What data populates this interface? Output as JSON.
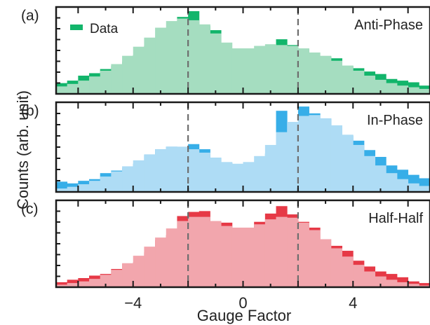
{
  "figure": {
    "xlabel": "Gauge Factor",
    "ylabel": "Counts (arb. unit)",
    "xticks": [
      -4,
      0,
      4
    ],
    "vlines": [
      -2,
      2
    ]
  },
  "legend": {
    "label": "Data"
  },
  "chart_data": [
    {
      "type": "bar",
      "panel_label": "(a)",
      "title": "Anti-Phase",
      "xlabel": "Gauge Factor",
      "ylabel": "Counts (arb. unit)",
      "xlim": [
        -6.8,
        6.8
      ],
      "ylim": [
        0,
        1.05
      ],
      "bin_width": 0.4,
      "bin_centers": [
        -6.6,
        -6.2,
        -5.8,
        -5.4,
        -5.0,
        -4.6,
        -4.2,
        -3.8,
        -3.4,
        -3.0,
        -2.6,
        -2.2,
        -1.8,
        -1.4,
        -1.0,
        -0.6,
        -0.2,
        0.2,
        0.6,
        1.0,
        1.4,
        1.8,
        2.2,
        2.6,
        3.0,
        3.4,
        3.8,
        4.2,
        4.6,
        5.0,
        5.4,
        5.8,
        6.2,
        6.6
      ],
      "series": [
        {
          "name": "Data",
          "kind": "histogram",
          "color": "#12b56b",
          "values": [
            0.13,
            0.16,
            0.22,
            0.25,
            0.3,
            0.34,
            0.39,
            0.47,
            0.58,
            0.6,
            0.69,
            0.93,
            1.0,
            0.82,
            0.77,
            0.52,
            0.18,
            0.52,
            0.5,
            0.56,
            0.66,
            0.59,
            0.54,
            0.45,
            0.45,
            0.43,
            0.34,
            0.31,
            0.27,
            0.24,
            0.18,
            0.16,
            0.14,
            0.1
          ]
        },
        {
          "kind": "fit",
          "color": "#a5ddc0",
          "values": [
            0.09,
            0.12,
            0.16,
            0.21,
            0.28,
            0.36,
            0.46,
            0.57,
            0.68,
            0.8,
            0.88,
            0.91,
            0.89,
            0.84,
            0.73,
            0.62,
            0.55,
            0.55,
            0.58,
            0.6,
            0.59,
            0.58,
            0.55,
            0.5,
            0.46,
            0.4,
            0.34,
            0.28,
            0.22,
            0.17,
            0.13,
            0.1,
            0.08,
            0.06
          ]
        }
      ]
    },
    {
      "type": "bar",
      "panel_label": "(b)",
      "title": "In-Phase",
      "xlim": [
        -6.8,
        6.8
      ],
      "ylim": [
        0,
        1.05
      ],
      "bin_width": 0.4,
      "bin_centers": [
        -6.6,
        -6.2,
        -5.8,
        -5.4,
        -5.0,
        -4.6,
        -4.2,
        -3.8,
        -3.4,
        -3.0,
        -2.6,
        -2.2,
        -1.8,
        -1.4,
        -1.0,
        -0.6,
        -0.2,
        0.2,
        0.6,
        1.0,
        1.4,
        1.8,
        2.2,
        2.6,
        3.0,
        3.4,
        3.8,
        4.2,
        4.6,
        5.0,
        5.4,
        5.8,
        6.2,
        6.6
      ],
      "series": [
        {
          "kind": "histogram",
          "color": "#37aee8",
          "values": [
            0.12,
            0.1,
            0.13,
            0.15,
            0.22,
            0.25,
            0.28,
            0.33,
            0.43,
            0.5,
            0.53,
            0.5,
            0.56,
            0.5,
            0.4,
            0.34,
            0.26,
            0.1,
            0.25,
            0.45,
            0.95,
            0.72,
            1.0,
            0.92,
            0.86,
            0.76,
            0.66,
            0.6,
            0.49,
            0.41,
            0.31,
            0.26,
            0.2,
            0.16
          ]
        },
        {
          "kind": "fit",
          "color": "#aedcf5",
          "values": [
            0.04,
            0.06,
            0.09,
            0.13,
            0.18,
            0.24,
            0.3,
            0.37,
            0.44,
            0.5,
            0.53,
            0.53,
            0.5,
            0.46,
            0.4,
            0.35,
            0.33,
            0.35,
            0.42,
            0.55,
            0.7,
            0.82,
            0.89,
            0.9,
            0.86,
            0.78,
            0.67,
            0.55,
            0.42,
            0.31,
            0.22,
            0.15,
            0.1,
            0.07
          ]
        }
      ]
    },
    {
      "type": "bar",
      "panel_label": "(c)",
      "title": "Half-Half",
      "xlim": [
        -6.8,
        6.8
      ],
      "ylim": [
        0,
        1.05
      ],
      "bin_width": 0.4,
      "bin_centers": [
        -6.6,
        -6.2,
        -5.8,
        -5.4,
        -5.0,
        -4.6,
        -4.2,
        -3.8,
        -3.4,
        -3.0,
        -2.6,
        -2.2,
        -1.8,
        -1.4,
        -1.0,
        -0.6,
        -0.2,
        0.2,
        0.6,
        1.0,
        1.4,
        1.8,
        2.2,
        2.6,
        3.0,
        3.4,
        3.8,
        4.2,
        4.6,
        5.0,
        5.4,
        5.8,
        6.2,
        6.6
      ],
      "series": [
        {
          "kind": "histogram",
          "color": "#e63946",
          "values": [
            0.06,
            0.09,
            0.11,
            0.14,
            0.16,
            0.22,
            0.28,
            0.3,
            0.42,
            0.57,
            0.63,
            0.86,
            0.91,
            0.92,
            0.75,
            0.78,
            0.22,
            0.6,
            0.79,
            0.89,
            0.98,
            0.88,
            0.79,
            0.72,
            0.5,
            0.5,
            0.44,
            0.32,
            0.25,
            0.19,
            0.16,
            0.12,
            0.07,
            0.05
          ]
        },
        {
          "kind": "fit",
          "color": "#f2a6ad",
          "values": [
            0.03,
            0.05,
            0.07,
            0.1,
            0.15,
            0.21,
            0.29,
            0.38,
            0.49,
            0.6,
            0.71,
            0.8,
            0.85,
            0.85,
            0.8,
            0.74,
            0.72,
            0.72,
            0.76,
            0.82,
            0.85,
            0.84,
            0.78,
            0.69,
            0.58,
            0.47,
            0.37,
            0.27,
            0.19,
            0.13,
            0.09,
            0.06,
            0.04,
            0.02
          ]
        }
      ]
    }
  ]
}
